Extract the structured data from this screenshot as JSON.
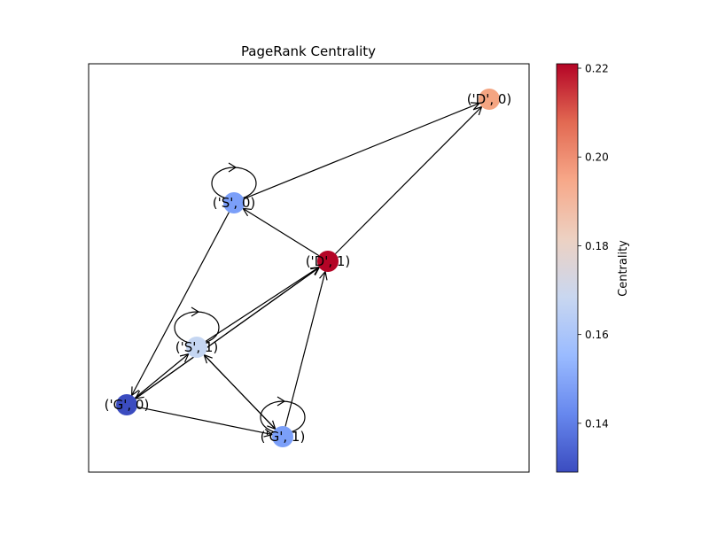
{
  "title": "PageRank Centrality",
  "colorbar": {
    "label": "Centrality",
    "min": 0.129,
    "max": 0.221,
    "ticks": [
      "0.14",
      "0.16",
      "0.18",
      "0.20",
      "0.22"
    ],
    "colors": [
      "#3b4cc0",
      "#6788ee",
      "#9abbff",
      "#c9d7f0",
      "#edd1c2",
      "#f7a889",
      "#e26952",
      "#b40426"
    ]
  },
  "nodes": [
    {
      "id": "D0",
      "label": "('D', 0)",
      "value": 0.195,
      "color": "#f4a582"
    },
    {
      "id": "S0",
      "label": "('S', 0)",
      "value": 0.15,
      "color": "#7b9ff9"
    },
    {
      "id": "D1",
      "label": "('D', 1)",
      "value": 0.221,
      "color": "#b40426"
    },
    {
      "id": "S1",
      "label": "('S', 1)",
      "value": 0.166,
      "color": "#c5d6f2"
    },
    {
      "id": "G0",
      "label": "('G', 0)",
      "value": 0.129,
      "color": "#3b4cc0"
    },
    {
      "id": "G1",
      "label": "('G', 1)",
      "value": 0.15,
      "color": "#7b9ff9"
    }
  ],
  "edges": [
    {
      "from": "S0",
      "to": "S0"
    },
    {
      "from": "S0",
      "to": "D0"
    },
    {
      "from": "S0",
      "to": "G0"
    },
    {
      "from": "D1",
      "to": "D0"
    },
    {
      "from": "D1",
      "to": "S0"
    },
    {
      "from": "D1",
      "to": "G0"
    },
    {
      "from": "S1",
      "to": "S1"
    },
    {
      "from": "S1",
      "to": "D1"
    },
    {
      "from": "S1",
      "to": "G1"
    },
    {
      "from": "G0",
      "to": "S1"
    },
    {
      "from": "G0",
      "to": "D1"
    },
    {
      "from": "G0",
      "to": "G1"
    },
    {
      "from": "G1",
      "to": "G1"
    },
    {
      "from": "G1",
      "to": "S1"
    },
    {
      "from": "G1",
      "to": "D1"
    }
  ]
}
